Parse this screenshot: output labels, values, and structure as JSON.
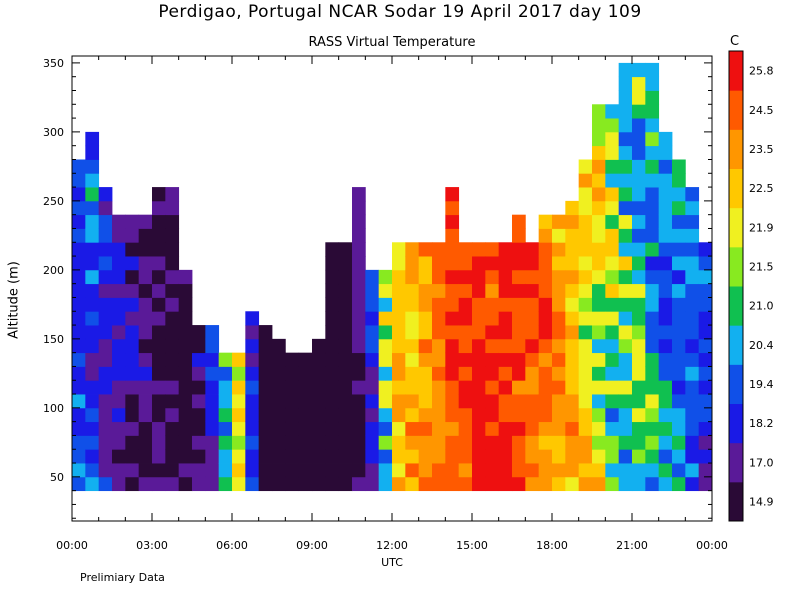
{
  "chart_data": {
    "type": "heatmap",
    "title": "Perdigao, Portugal  NCAR Sodar  19 April 2017  day 109",
    "subtitle": "RASS Virtual Temperature",
    "xlabel": "UTC",
    "ylabel": "Altitude (m)",
    "footnote": "Prelimiary Data",
    "colorbar_unit": "C",
    "x_ticks": [
      "00:00",
      "03:00",
      "06:00",
      "09:00",
      "12:00",
      "15:00",
      "18:00",
      "21:00",
      "00:00"
    ],
    "xlim_hours": [
      0,
      24
    ],
    "y_ticks": [
      50,
      100,
      150,
      200,
      250,
      300,
      350
    ],
    "ylim": [
      18,
      355
    ],
    "colorbar_ticks": [
      14.9,
      17.0,
      18.2,
      19.4,
      20.4,
      21.0,
      21.5,
      21.9,
      22.5,
      23.5,
      24.5,
      25.8
    ],
    "colorbar_colors": [
      "#2a0a36",
      "#5a1a98",
      "#1a1ae6",
      "#1050e8",
      "#12b0f0",
      "#10c050",
      "#88ea20",
      "#f0f020",
      "#ffc800",
      "#ff9600",
      "#ff5a00",
      "#ee1010"
    ],
    "time_samples_hours": [
      0,
      0.5,
      1,
      1.5,
      2,
      2.5,
      3,
      3.5,
      4,
      4.5,
      5,
      5.5,
      6,
      6.5,
      7,
      7.5,
      8,
      8.5,
      9,
      9.5,
      10,
      10.5,
      11,
      11.5,
      12,
      12.5,
      13,
      13.5,
      14,
      14.5,
      15,
      15.5,
      16,
      16.5,
      17,
      17.5,
      18,
      18.5,
      19,
      19.5,
      20,
      20.5,
      21,
      21.5,
      22,
      22.5,
      23,
      23.5
    ],
    "max_altitude_m": [
      280,
      300,
      260,
      240,
      240,
      240,
      260,
      260,
      200,
      160,
      160,
      140,
      140,
      170,
      160,
      150,
      140,
      140,
      150,
      220,
      220,
      260,
      200,
      200,
      220,
      220,
      220,
      220,
      260,
      220,
      220,
      220,
      220,
      240,
      220,
      240,
      240,
      250,
      280,
      320,
      320,
      350,
      350,
      350,
      300,
      280,
      260,
      220
    ],
    "min_altitude_m": 40,
    "temperature_profile_c": [
      19.4,
      19.6,
      18.4,
      17.8,
      17.5,
      17.2,
      17.0,
      16.6,
      16.2,
      17.4,
      18.6,
      20.6,
      21.6,
      18.8,
      15.2,
      15.0,
      14.9,
      14.9,
      15.1,
      15.3,
      16.0,
      16.8,
      18.8,
      21.2,
      22.8,
      23.6,
      24.2,
      24.8,
      25.4,
      25.8,
      25.9,
      25.9,
      25.8,
      25.6,
      25.2,
      24.6,
      24.0,
      23.2,
      22.8,
      22.3,
      21.8,
      21.3,
      21.0,
      20.8,
      20.7,
      20.5,
      20.0,
      19.2
    ]
  }
}
